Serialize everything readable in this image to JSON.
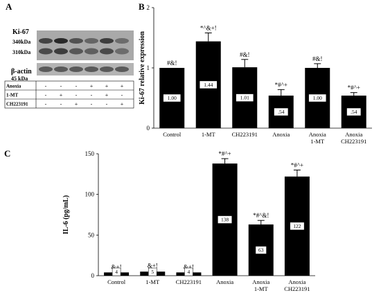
{
  "panels": {
    "a": {
      "letter": "A",
      "title": "Ki-67",
      "band_labels": [
        "340kDa",
        "310kDa"
      ],
      "actin_label": "β-actin",
      "actin_kda": "45 kDa",
      "table_rows": [
        {
          "label": "Anoxia",
          "signs": [
            "-",
            "-",
            "-",
            "+",
            "+",
            "+"
          ]
        },
        {
          "label": "1-MT",
          "signs": [
            "-",
            "+",
            "-",
            "-",
            "+",
            "-"
          ]
        },
        {
          "label": "CH223191",
          "signs": [
            "-",
            "-",
            "+",
            "-",
            "-",
            "+"
          ]
        }
      ]
    },
    "b": {
      "letter": "B"
    },
    "c": {
      "letter": "C"
    }
  },
  "chart_data": [
    {
      "type": "bar",
      "panel": "B",
      "ylabel": "Ki-67 relative expression",
      "ylim": [
        0,
        2
      ],
      "yticks": [
        "0",
        "1",
        "2"
      ],
      "categories": [
        [
          "Control"
        ],
        [
          "1-MT"
        ],
        [
          "CH223191"
        ],
        [
          "Anoxia"
        ],
        [
          "Anoxia",
          "1-MT"
        ],
        [
          "Anoxia",
          "CH223191"
        ]
      ],
      "values": [
        1.0,
        1.44,
        1.01,
        0.54,
        1.0,
        0.54
      ],
      "errors": [
        0.0,
        0.14,
        0.13,
        0.1,
        0.07,
        0.05
      ],
      "value_labels": [
        "1.00",
        "1.44",
        "1.01",
        ".54",
        "1.00",
        ".54"
      ],
      "annotations": [
        "#&!",
        "*^&+!",
        "#&!",
        "*#^+",
        "#&!",
        "*#^+"
      ],
      "bar_color": "#000000"
    },
    {
      "type": "bar",
      "panel": "C",
      "ylabel": "IL-6 (pg/mL)",
      "ylim": [
        0,
        150
      ],
      "yticks": [
        "0",
        "50",
        "100",
        "150"
      ],
      "categories": [
        [
          "Control"
        ],
        [
          "1-MT"
        ],
        [
          "CH223191"
        ],
        [
          "Anoxia"
        ],
        [
          "Anoxia",
          "1-MT"
        ],
        [
          "Anoxia",
          "CH223191"
        ]
      ],
      "values": [
        4,
        5,
        4,
        138,
        63,
        122
      ],
      "errors": [
        0.5,
        1.5,
        0.5,
        6,
        5,
        8
      ],
      "value_labels": [
        "4",
        "5",
        "4",
        "138",
        "63",
        "122"
      ],
      "annotations": [
        "&+!",
        "&+!",
        "&+!",
        "*#^+",
        "*#^&!",
        "*#^+"
      ],
      "bar_color": "#000000"
    }
  ]
}
